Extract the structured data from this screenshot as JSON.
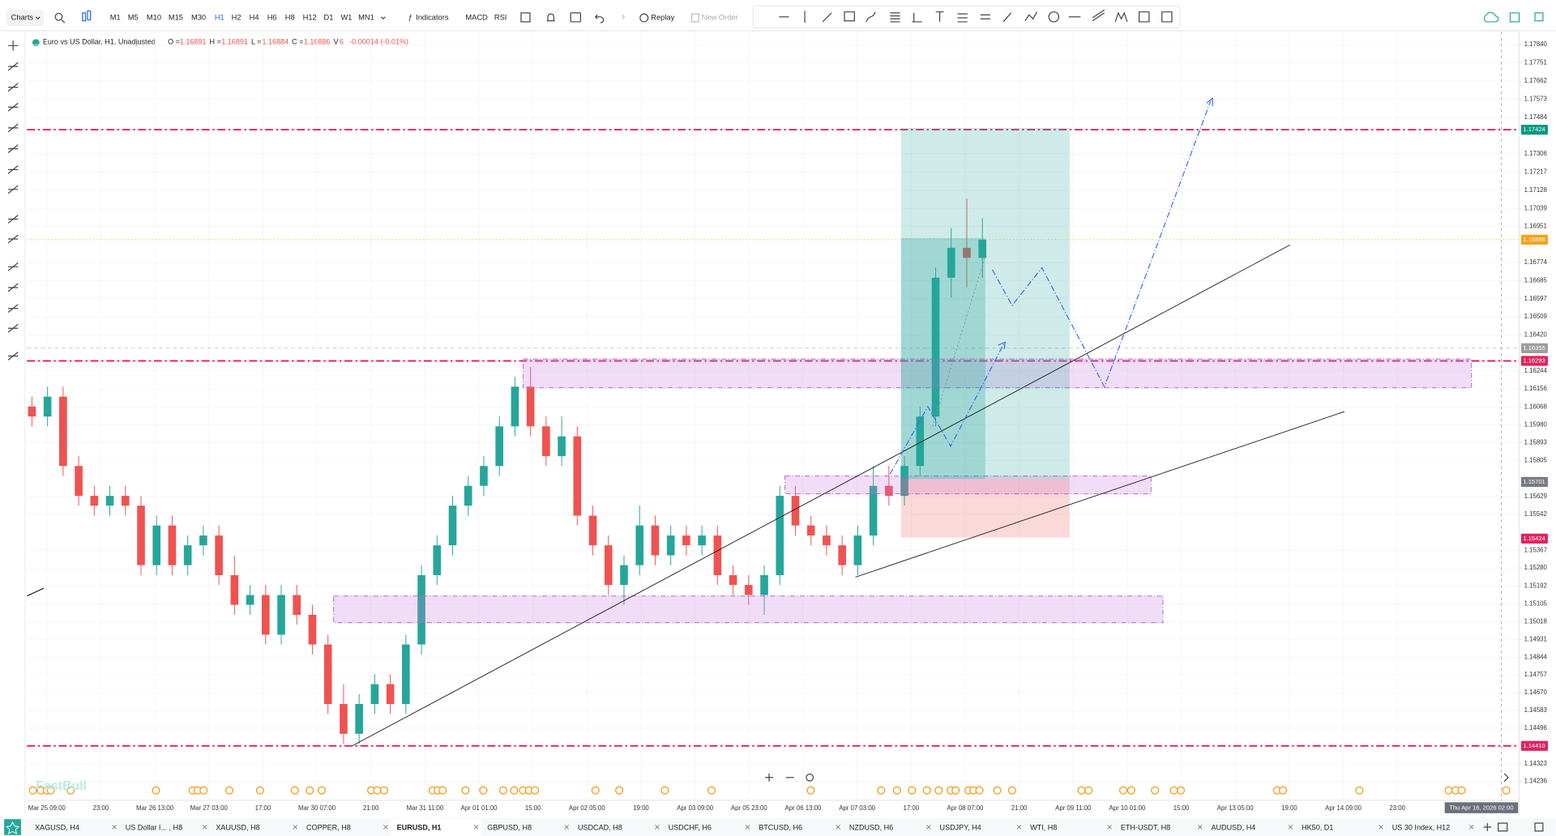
{
  "toolbar": {
    "charts": "Charts",
    "timeframes": [
      "M1",
      "M5",
      "M10",
      "M15",
      "M30",
      "H1",
      "H2",
      "H4",
      "H6",
      "H8",
      "H12",
      "D1",
      "W1",
      "MN1"
    ],
    "active_timeframe": 5,
    "indicators": "Indicators",
    "macd": "MACD",
    "rsi": "RSI",
    "replay": "Replay",
    "new_order": "New Order"
  },
  "legend": {
    "symbol": "Euro vs US Dollar, H1, Unadjusted",
    "o_label": "O =",
    "o": "1.16891",
    "h_label": "H =",
    "h": "1.16891",
    "l_label": "L =",
    "l": "1.16884",
    "c_label": "C =",
    "c": "1.16886",
    "v_label": "V",
    "v": "6",
    "change": "-0.00014 (-0.01%)"
  },
  "watermark": "FastBull",
  "crosshair_time": "Thu Apr 16, 2026 02:00",
  "tabs": [
    "XAGUSD, H4",
    "US Dollar I... , H8",
    "XAUUSD, H8",
    "COPPER, H8",
    "EURUSD, H1",
    "GBPUSD, H8",
    "USDCAD, H8",
    "USDCHF, H6",
    "BTCUSD, H6",
    "NZDUSD, H6",
    "USDJPY, H4",
    "WTI, H8",
    "ETH-USDT, H8",
    "AUDUSD, H4",
    "HK50, D1",
    "US 30 Index, H12"
  ],
  "active_tab": 4,
  "chart_data": {
    "type": "candlestick",
    "up_color": "#26a69a",
    "down_color": "#ef5350",
    "grid": true,
    "ylim": [
      1.14236,
      1.1784
    ],
    "yticks": [
      {
        "value": 1.1784,
        "label": "1.17840"
      },
      {
        "value": 1.17751,
        "label": "1.17751"
      },
      {
        "value": 1.17662,
        "label": "1.17662"
      },
      {
        "value": 1.17573,
        "label": "1.17573"
      },
      {
        "value": 1.17484,
        "label": "1.17484"
      },
      {
        "value": 1.17306,
        "label": "1.17306"
      },
      {
        "value": 1.17217,
        "label": "1.17217"
      },
      {
        "value": 1.17128,
        "label": "1.17128"
      },
      {
        "value": 1.17039,
        "label": "1.17039"
      },
      {
        "value": 1.16951,
        "label": "1.16951"
      },
      {
        "value": 1.16774,
        "label": "1.16774"
      },
      {
        "value": 1.16685,
        "label": "1.16685"
      },
      {
        "value": 1.16597,
        "label": "1.16597"
      },
      {
        "value": 1.16509,
        "label": "1.16509"
      },
      {
        "value": 1.1642,
        "label": "1.16420"
      },
      {
        "value": 1.16244,
        "label": "1.16244"
      },
      {
        "value": 1.16156,
        "label": "1.16156"
      },
      {
        "value": 1.16068,
        "label": "1.16068"
      },
      {
        "value": 1.1598,
        "label": "1.15980"
      },
      {
        "value": 1.15893,
        "label": "1.15893"
      },
      {
        "value": 1.15805,
        "label": "1.15805"
      },
      {
        "value": 1.15629,
        "label": "1.15629"
      },
      {
        "value": 1.15542,
        "label": "1.15542"
      },
      {
        "value": 1.15367,
        "label": "1.15367"
      },
      {
        "value": 1.1528,
        "label": "1.15280"
      },
      {
        "value": 1.15192,
        "label": "1.15192"
      },
      {
        "value": 1.15105,
        "label": "1.15105"
      },
      {
        "value": 1.15018,
        "label": "1.15018"
      },
      {
        "value": 1.14931,
        "label": "1.14931"
      },
      {
        "value": 1.14844,
        "label": "1.14844"
      },
      {
        "value": 1.14757,
        "label": "1.14757"
      },
      {
        "value": 1.1467,
        "label": "1.14670"
      },
      {
        "value": 1.14583,
        "label": "1.14583"
      },
      {
        "value": 1.14496,
        "label": "1.14496"
      },
      {
        "value": 1.14323,
        "label": "1.14323"
      },
      {
        "value": 1.14236,
        "label": "1.14236"
      }
    ],
    "price_labels": [
      {
        "value": 1.17424,
        "label": "1.17424",
        "color": "#089981"
      },
      {
        "value": 1.16886,
        "label": "1.16886",
        "color": "#f7a21b"
      },
      {
        "value": 1.16355,
        "label": "1.16355",
        "color": "#9e9e9e"
      },
      {
        "value": 1.16293,
        "label": "1.16293",
        "color": "#e0245e"
      },
      {
        "value": 1.15701,
        "label": "1.15701",
        "color": "#787b86"
      },
      {
        "value": 1.15424,
        "label": "1.15424",
        "color": "#e0245e"
      },
      {
        "value": 1.1441,
        "label": "1.14410",
        "color": "#e0245e"
      }
    ],
    "horizontal_lines": [
      {
        "value": 1.17424,
        "color": "#e0245e",
        "style": "dash-dot"
      },
      {
        "value": 1.16293,
        "color": "#e0245e",
        "style": "dash-dot"
      },
      {
        "value": 1.1441,
        "color": "#e0245e",
        "style": "dash-dot"
      },
      {
        "value": 1.16886,
        "color": "#f7c56b",
        "style": "dotted"
      },
      {
        "value": 1.16355,
        "color": "#bbbbbb",
        "style": "dashed"
      }
    ],
    "time_labels": [
      "Mar 25 09:00",
      "23:00",
      "Mar 26 13:00",
      "Mar 27 03:00",
      "17:00",
      "Mar 30 07:00",
      "21:00",
      "Mar 31 11:00",
      "Apr 01 01:00",
      "15:00",
      "Apr 02 05:00",
      "19:00",
      "Apr 03 09:00",
      "Apr 05 23:00",
      "Apr 06 13:00",
      "Apr 07 03:00",
      "17:00",
      "Apr 08 07:00",
      "21:00",
      "Apr 09 11:00",
      "Apr 10 01:00",
      "15:00",
      "Apr 13 05:00",
      "19:00",
      "Apr 14 09:00",
      "23:00"
    ],
    "candles": [
      [
        1.1607,
        1.16118,
        1.15973,
        1.16021
      ],
      [
        1.16021,
        1.16167,
        1.15973,
        1.16118
      ],
      [
        1.16118,
        1.16167,
        1.1573,
        1.15779
      ],
      [
        1.15779,
        1.15827,
        1.15585,
        1.15633
      ],
      [
        1.15633,
        1.15682,
        1.15536,
        1.15585
      ],
      [
        1.15585,
        1.15682,
        1.15536,
        1.15633
      ],
      [
        1.15633,
        1.15682,
        1.15536,
        1.15585
      ],
      [
        1.15585,
        1.15633,
        1.15245,
        1.15294
      ],
      [
        1.15294,
        1.15536,
        1.15245,
        1.15488
      ],
      [
        1.15488,
        1.15536,
        1.15245,
        1.15294
      ],
      [
        1.15294,
        1.15439,
        1.15245,
        1.15391
      ],
      [
        1.15391,
        1.15488,
        1.15342,
        1.15439
      ],
      [
        1.15439,
        1.15488,
        1.15197,
        1.15245
      ],
      [
        1.15245,
        1.15342,
        1.15051,
        1.151
      ],
      [
        1.151,
        1.15197,
        1.15051,
        1.15148
      ],
      [
        1.15148,
        1.15197,
        1.14906,
        1.14954
      ],
      [
        1.14954,
        1.15197,
        1.14906,
        1.15148
      ],
      [
        1.15148,
        1.15197,
        1.15003,
        1.15051
      ],
      [
        1.15051,
        1.151,
        1.14857,
        1.14906
      ],
      [
        1.14906,
        1.14954,
        1.14566,
        1.14615
      ],
      [
        1.14615,
        1.14712,
        1.14421,
        1.14469
      ],
      [
        1.14469,
        1.14663,
        1.14421,
        1.14615
      ],
      [
        1.14615,
        1.1476,
        1.14566,
        1.14712
      ],
      [
        1.14712,
        1.1476,
        1.14566,
        1.14615
      ],
      [
        1.14615,
        1.14954,
        1.14566,
        1.14906
      ],
      [
        1.14906,
        1.15294,
        1.14857,
        1.15245
      ],
      [
        1.15245,
        1.15439,
        1.15197,
        1.15391
      ],
      [
        1.15391,
        1.15633,
        1.15342,
        1.15585
      ],
      [
        1.15585,
        1.1573,
        1.15536,
        1.15682
      ],
      [
        1.15682,
        1.15827,
        1.15633,
        1.15779
      ],
      [
        1.15779,
        1.16021,
        1.1573,
        1.15973
      ],
      [
        1.15973,
        1.16215,
        1.15924,
        1.16167
      ],
      [
        1.16167,
        1.16264,
        1.15924,
        1.15973
      ],
      [
        1.15973,
        1.16021,
        1.15779,
        1.15827
      ],
      [
        1.15827,
        1.16021,
        1.15779,
        1.15924
      ],
      [
        1.15924,
        1.15973,
        1.15488,
        1.15536
      ],
      [
        1.15536,
        1.15585,
        1.15342,
        1.15391
      ],
      [
        1.15391,
        1.15439,
        1.15148,
        1.15197
      ],
      [
        1.15197,
        1.15342,
        1.151,
        1.15294
      ],
      [
        1.15294,
        1.15585,
        1.15245,
        1.15488
      ],
      [
        1.15488,
        1.15536,
        1.15294,
        1.15342
      ],
      [
        1.15342,
        1.15488,
        1.15294,
        1.15439
      ],
      [
        1.15439,
        1.15488,
        1.15342,
        1.15391
      ],
      [
        1.15391,
        1.15488,
        1.15342,
        1.15439
      ],
      [
        1.15439,
        1.15488,
        1.15197,
        1.15245
      ],
      [
        1.15245,
        1.15294,
        1.15148,
        1.15197
      ],
      [
        1.15197,
        1.15245,
        1.151,
        1.15148
      ],
      [
        1.15148,
        1.15294,
        1.15051,
        1.15245
      ],
      [
        1.15245,
        1.15682,
        1.15197,
        1.15633
      ],
      [
        1.15633,
        1.15682,
        1.15439,
        1.15488
      ],
      [
        1.15488,
        1.15536,
        1.15391,
        1.15439
      ],
      [
        1.15439,
        1.15488,
        1.15342,
        1.15391
      ],
      [
        1.15391,
        1.15439,
        1.15245,
        1.15294
      ],
      [
        1.15294,
        1.15488,
        1.15245,
        1.15439
      ],
      [
        1.15439,
        1.15779,
        1.15391,
        1.15682
      ],
      [
        1.15682,
        1.15779,
        1.15585,
        1.15633
      ],
      [
        1.15633,
        1.15827,
        1.15585,
        1.15779
      ],
      [
        1.15779,
        1.1607,
        1.1573,
        1.16021
      ],
      [
        1.16021,
        1.16749,
        1.15973,
        1.167
      ],
      [
        1.167,
        1.16943,
        1.16603,
        1.16846
      ],
      [
        1.16846,
        1.17088,
        1.16652,
        1.16797
      ],
      [
        1.16797,
        1.16991,
        1.167,
        1.16886
      ]
    ]
  }
}
